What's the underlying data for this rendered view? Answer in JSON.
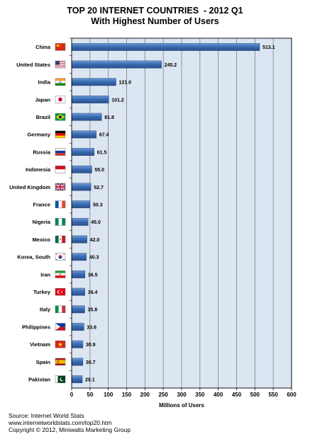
{
  "chart_data": {
    "type": "bar",
    "orientation": "horizontal",
    "title": "TOP 20 INTERNET COUNTRIES  - 2012 Q1",
    "subtitle": "With Highest Number of Users",
    "xlabel": "Millions of Users",
    "ylabel": "",
    "xlim": [
      0,
      600
    ],
    "xticks": [
      "0",
      "50",
      "100",
      "150",
      "200",
      "250",
      "300",
      "350",
      "400",
      "450",
      "500",
      "550",
      "600"
    ],
    "grid": true,
    "legend": "none",
    "categories": [
      "China",
      "United States",
      "India",
      "Japan",
      "Brazil",
      "Germany",
      "Russia",
      "Indonesia",
      "United Kingdom",
      "France",
      "Nigeria",
      "Mexico",
      "Korea, South",
      "Iran",
      "Turkey",
      "Italy",
      "Philippines",
      "Vietnam",
      "Spain",
      "Pakistan"
    ],
    "values": [
      513.1,
      245.2,
      121.0,
      101.2,
      81.8,
      67.4,
      61.5,
      55.0,
      52.7,
      50.3,
      45.0,
      42.0,
      40.3,
      36.5,
      36.4,
      35.8,
      33.6,
      30.9,
      30.7,
      29.1
    ],
    "value_labels": [
      "513.1",
      "245.2",
      "121.0",
      "101.2",
      "81.8",
      "67.4",
      "61.5",
      "55.0",
      "52.7",
      "50.3",
      "45.0",
      "42.0",
      "40.3",
      "36.5",
      "36.4",
      "35.8",
      "33.6",
      "30.9",
      "30.7",
      "29.1"
    ],
    "flag_icons": [
      "china-flag-icon",
      "united-states-flag-icon",
      "india-flag-icon",
      "japan-flag-icon",
      "brazil-flag-icon",
      "germany-flag-icon",
      "russia-flag-icon",
      "indonesia-flag-icon",
      "united-kingdom-flag-icon",
      "france-flag-icon",
      "nigeria-flag-icon",
      "mexico-flag-icon",
      "korea-south-flag-icon",
      "iran-flag-icon",
      "turkey-flag-icon",
      "italy-flag-icon",
      "philippines-flag-icon",
      "vietnam-flag-icon",
      "spain-flag-icon",
      "pakistan-flag-icon"
    ],
    "colors": {
      "plot_background": "#dce6f2",
      "bar": "#3a6db4",
      "bar_highlight": "#6f9ad6",
      "gridline": "#7f7f7f",
      "border": "#000000"
    }
  },
  "footer": {
    "source": "Source: Internet World Stats",
    "url": "www.internetworldstats.com/top20.htm",
    "copyright": "Copyright © 2012, Miniwatts Marketing Group"
  }
}
